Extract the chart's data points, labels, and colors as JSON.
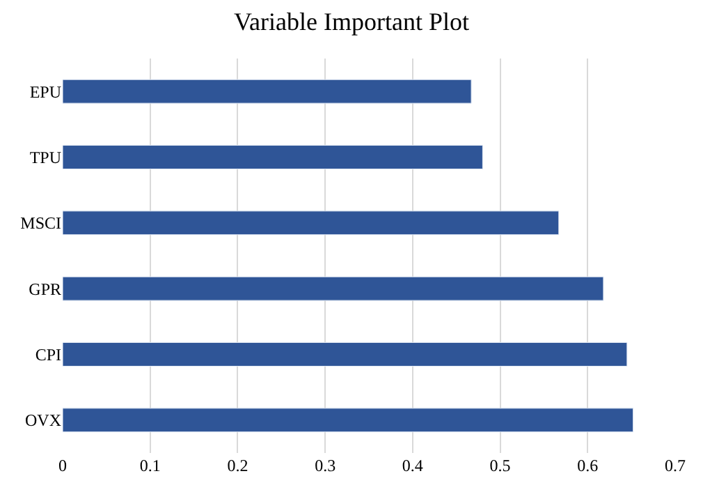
{
  "chart_data": {
    "type": "bar",
    "orientation": "horizontal",
    "title": "Variable Important Plot",
    "categories": [
      "EPU",
      "TPU",
      "MSCI",
      "GPR",
      "CPI",
      "OVX"
    ],
    "values": [
      0.467,
      0.48,
      0.567,
      0.618,
      0.645,
      0.652
    ],
    "color": "#2f5597",
    "xlim": [
      0,
      0.7
    ],
    "xticks": [
      0,
      0.1,
      0.2,
      0.3,
      0.4,
      0.5,
      0.6,
      0.7
    ],
    "grid": "x",
    "legend": false
  }
}
